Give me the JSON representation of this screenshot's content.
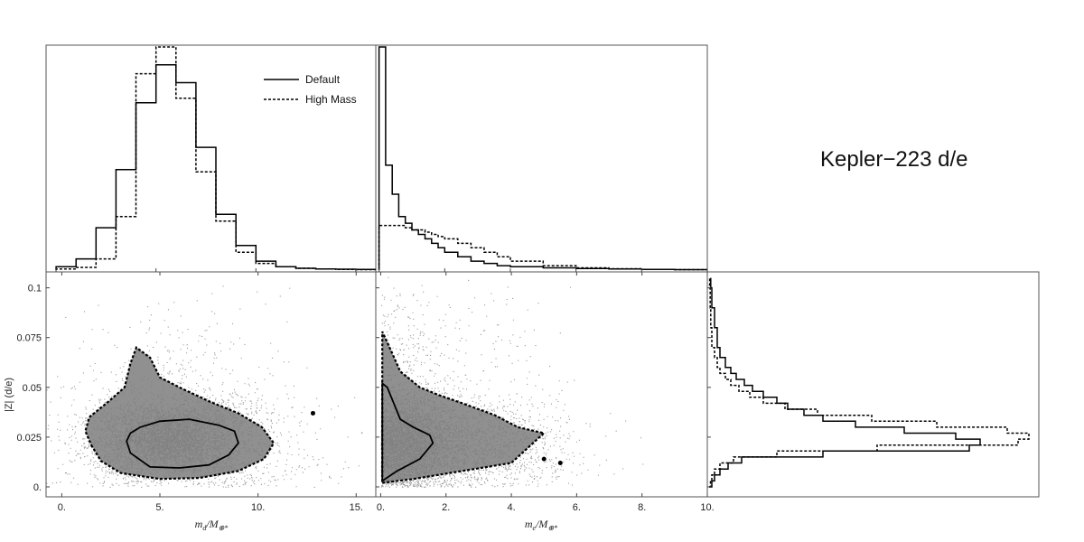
{
  "title": "Kepler−223 d/e",
  "legend": {
    "default_label": "Default",
    "high_mass_label": "High Mass",
    "placement": "top-right of first panel"
  },
  "colors": {
    "scatter_points": "#9a9a9a",
    "scatter_core": "#7d7d7d",
    "lines": "#000000"
  },
  "chart_data": [
    {
      "type": "histogram",
      "panel": "top-left",
      "x_variable": "m_d / M_earth",
      "xlim": [
        -0.5,
        16
      ],
      "bin_edges": [
        0,
        1,
        2,
        3,
        4,
        5,
        6,
        7,
        8,
        9,
        10,
        11,
        12,
        13,
        14,
        15,
        16
      ],
      "series": [
        {
          "name": "Default",
          "style": "solid",
          "values": [
            0.015,
            0.05,
            0.19,
            0.45,
            0.75,
            0.92,
            0.84,
            0.55,
            0.25,
            0.11,
            0.04,
            0.015,
            0.008,
            0.005,
            0.004,
            0.003
          ]
        },
        {
          "name": "High Mass",
          "style": "dashed",
          "values": [
            0.005,
            0.012,
            0.05,
            0.24,
            0.88,
            1.0,
            0.77,
            0.44,
            0.22,
            0.08,
            0.03,
            0.015,
            0.008,
            0.005,
            0.003,
            0.002
          ]
        }
      ]
    },
    {
      "type": "histogram",
      "panel": "top-middle",
      "x_variable": "m_e / M_earth",
      "xlim": [
        -0.1,
        10
      ],
      "bin_edges": [
        0,
        0.2,
        0.4,
        0.6,
        0.8,
        1.0,
        1.2,
        1.4,
        1.6,
        1.8,
        2.0,
        2.4,
        2.8,
        3.2,
        3.6,
        4.0,
        5.0,
        6.0,
        7.0,
        8.0,
        9.0,
        10.0
      ],
      "series": [
        {
          "name": "Default",
          "style": "solid",
          "values": [
            1.0,
            0.47,
            0.34,
            0.24,
            0.21,
            0.18,
            0.16,
            0.14,
            0.12,
            0.1,
            0.08,
            0.06,
            0.04,
            0.03,
            0.02,
            0.015,
            0.01,
            0.007,
            0.005,
            0.003,
            0.002
          ]
        },
        {
          "name": "High Mass",
          "style": "dashed",
          "values": [
            0.2,
            0.2,
            0.2,
            0.2,
            0.19,
            0.18,
            0.18,
            0.17,
            0.16,
            0.15,
            0.14,
            0.12,
            0.1,
            0.08,
            0.06,
            0.04,
            0.02,
            0.01,
            0.006,
            0.003,
            0.002
          ]
        }
      ]
    },
    {
      "type": "scatter",
      "panel": "bottom-left",
      "xlabel_main": "m",
      "xlabel_sub": "d",
      "xlabel_rest": "/M",
      "xlabel_rest_sub": "⊕*",
      "ylabel": "|Z| (d/e)",
      "xlim": [
        -0.8,
        16
      ],
      "ylim": [
        -0.005,
        0.108
      ],
      "xticks": [
        0,
        5,
        10,
        15
      ],
      "xtick_labels": [
        "0.",
        "5.",
        "10.",
        "15."
      ],
      "yticks": [
        0,
        0.025,
        0.05,
        0.075,
        0.1
      ],
      "ytick_labels": [
        "0.",
        "0.025",
        "0.05",
        "0.075",
        "0.1"
      ],
      "cloud_center": [
        5.5,
        0.025
      ],
      "contours": [
        {
          "name": "Default",
          "style": "solid",
          "points": [
            [
              3.3,
              0.023
            ],
            [
              3.5,
              0.017
            ],
            [
              4.5,
              0.01
            ],
            [
              6,
              0.0095
            ],
            [
              7.5,
              0.011
            ],
            [
              8.5,
              0.016
            ],
            [
              9,
              0.022
            ],
            [
              8.8,
              0.028
            ],
            [
              8,
              0.031
            ],
            [
              6.5,
              0.034
            ],
            [
              5,
              0.033
            ],
            [
              4,
              0.03
            ],
            [
              3.5,
              0.027
            ]
          ]
        },
        {
          "name": "High Mass",
          "style": "dashed",
          "points": [
            [
              1.5,
              0.021
            ],
            [
              2,
              0.013
            ],
            [
              3,
              0.007
            ],
            [
              5,
              0.004
            ],
            [
              7,
              0.0045
            ],
            [
              9,
              0.008
            ],
            [
              10.3,
              0.014
            ],
            [
              10.8,
              0.022
            ],
            [
              10.2,
              0.03
            ],
            [
              9,
              0.037
            ],
            [
              7.5,
              0.043
            ],
            [
              6,
              0.05
            ],
            [
              5,
              0.055
            ],
            [
              4.5,
              0.065
            ],
            [
              3.8,
              0.07
            ],
            [
              3.5,
              0.062
            ],
            [
              3.2,
              0.05
            ],
            [
              2.4,
              0.043
            ],
            [
              1.4,
              0.035
            ],
            [
              1.2,
              0.028
            ]
          ]
        }
      ],
      "outlier_dot": [
        12.8,
        0.037
      ]
    },
    {
      "type": "scatter",
      "panel": "bottom-middle",
      "xlabel_main": "m",
      "xlabel_sub": "e",
      "xlabel_rest": "/M",
      "xlabel_rest_sub": "⊕*",
      "xlim": [
        -0.15,
        10
      ],
      "ylim": [
        -0.005,
        0.108
      ],
      "xticks": [
        0,
        2,
        4,
        6,
        8,
        10
      ],
      "xtick_labels": [
        "0.",
        "2.",
        "4.",
        "6.",
        "8.",
        "10."
      ],
      "cloud_center": [
        0.8,
        0.025
      ],
      "contours": [
        {
          "name": "Default",
          "style": "solid",
          "points": [
            [
              0.05,
              0.003
            ],
            [
              0.5,
              0.008
            ],
            [
              1.2,
              0.014
            ],
            [
              1.6,
              0.022
            ],
            [
              1.5,
              0.026
            ],
            [
              1.0,
              0.03
            ],
            [
              0.6,
              0.034
            ],
            [
              0.4,
              0.042
            ],
            [
              0.2,
              0.05
            ],
            [
              0.05,
              0.052
            ]
          ]
        },
        {
          "name": "High Mass",
          "style": "dashed",
          "points": [
            [
              0.05,
              0.002
            ],
            [
              1,
              0.004
            ],
            [
              2.5,
              0.008
            ],
            [
              4,
              0.012
            ],
            [
              4.4,
              0.018
            ],
            [
              5,
              0.027
            ],
            [
              4.2,
              0.03
            ],
            [
              3.5,
              0.036
            ],
            [
              2.5,
              0.042
            ],
            [
              1.8,
              0.046
            ],
            [
              1.2,
              0.05
            ],
            [
              0.6,
              0.058
            ],
            [
              0.3,
              0.069
            ],
            [
              0.05,
              0.078
            ]
          ]
        }
      ],
      "extra_blobs": [
        [
          5.0,
          0.014
        ],
        [
          5.5,
          0.012
        ]
      ]
    },
    {
      "type": "histogram_horizontal",
      "panel": "bottom-right",
      "y_variable": "|Z| (d/e)",
      "ylim": [
        -0.005,
        0.108
      ],
      "bin_edges": [
        0,
        0.003,
        0.006,
        0.009,
        0.012,
        0.015,
        0.018,
        0.021,
        0.024,
        0.027,
        0.03,
        0.033,
        0.036,
        0.039,
        0.042,
        0.045,
        0.048,
        0.051,
        0.054,
        0.057,
        0.06,
        0.065,
        0.07,
        0.08,
        0.09,
        0.1,
        0.105
      ],
      "series": [
        {
          "name": "Default",
          "style": "solid",
          "values": [
            0.01,
            0.02,
            0.04,
            0.07,
            0.12,
            0.42,
            0.96,
            1.0,
            0.91,
            0.72,
            0.54,
            0.42,
            0.35,
            0.29,
            0.25,
            0.2,
            0.16,
            0.13,
            0.1,
            0.08,
            0.06,
            0.04,
            0.03,
            0.02,
            0.01,
            0.006
          ]
        },
        {
          "name": "High Mass",
          "style": "dashed",
          "values": [
            0.005,
            0.01,
            0.02,
            0.04,
            0.09,
            0.25,
            0.62,
            1.14,
            1.18,
            1.1,
            0.84,
            0.6,
            0.4,
            0.28,
            0.2,
            0.15,
            0.11,
            0.08,
            0.06,
            0.04,
            0.03,
            0.02,
            0.01,
            0.006,
            0.004,
            0.002
          ]
        }
      ]
    }
  ]
}
